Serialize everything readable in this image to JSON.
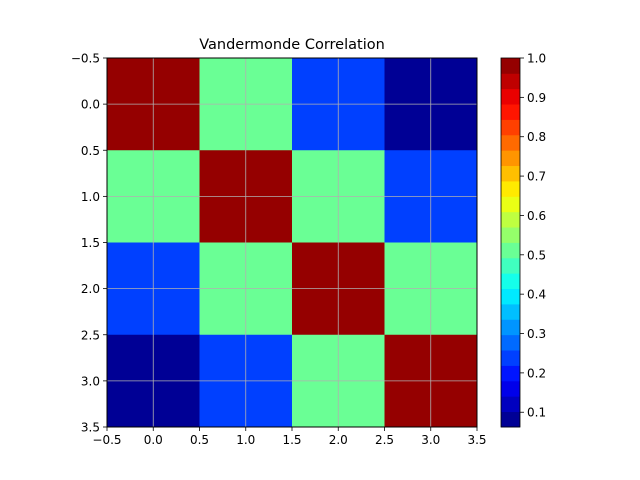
{
  "chart_data": {
    "type": "heatmap",
    "title": "Vandermonde Correlation",
    "xlabel": "",
    "ylabel": "",
    "rows": 4,
    "cols": 4,
    "values": [
      [
        1.0,
        0.5,
        0.25,
        0.06
      ],
      [
        0.5,
        1.0,
        0.5,
        0.25
      ],
      [
        0.25,
        0.5,
        1.0,
        0.5
      ],
      [
        0.06,
        0.25,
        0.5,
        1.0
      ]
    ],
    "xlim": [
      -0.5,
      3.5
    ],
    "ylim": [
      3.5,
      -0.5
    ],
    "x_ticks": [
      "−0.5",
      "0.0",
      "0.5",
      "1.0",
      "1.5",
      "2.0",
      "2.5",
      "3.0",
      "3.5"
    ],
    "y_ticks": [
      "−0.5",
      "0.0",
      "0.5",
      "1.0",
      "1.5",
      "2.0",
      "2.5",
      "3.0",
      "3.5"
    ],
    "grid": true,
    "colorbar": {
      "colormap": "jet",
      "range": [
        0.0625,
        1.0
      ],
      "ticks": [
        "0.1",
        "0.2",
        "0.3",
        "0.4",
        "0.5",
        "0.6",
        "0.7",
        "0.8",
        "0.9",
        "1.0"
      ],
      "tick_values": [
        0.1,
        0.2,
        0.3,
        0.4,
        0.5,
        0.6,
        0.7,
        0.8,
        0.9,
        1.0
      ],
      "levels": 24
    }
  }
}
